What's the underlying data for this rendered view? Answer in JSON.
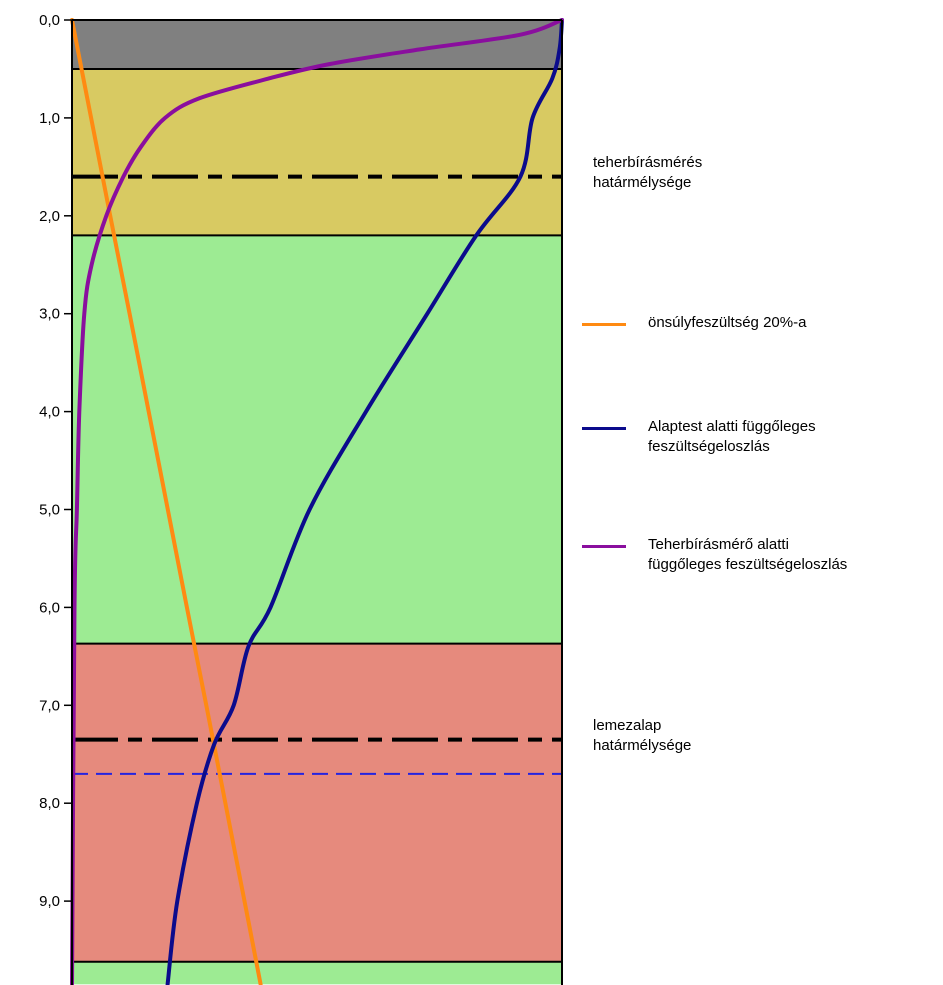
{
  "chart_data": {
    "type": "line",
    "title": "",
    "xlabel": "",
    "ylabel": "",
    "ylim": [
      0,
      9.85
    ],
    "y_inverted": true,
    "y_ticks": [
      "0,0",
      "1,0",
      "2,0",
      "3,0",
      "4,0",
      "5,0",
      "6,0",
      "7,0",
      "8,0",
      "9,0"
    ],
    "layers": [
      {
        "top": 0.0,
        "bottom": 0.5,
        "color": "#808080"
      },
      {
        "top": 0.5,
        "bottom": 2.2,
        "color": "#d8ca62"
      },
      {
        "top": 2.2,
        "bottom": 6.37,
        "color": "#9deb93"
      },
      {
        "top": 6.37,
        "bottom": 9.62,
        "color": "#e68a7d"
      },
      {
        "top": 9.62,
        "bottom": 9.85,
        "color": "#9deb93"
      }
    ],
    "reference_lines": [
      {
        "depth": 1.6,
        "style": "dash-dot",
        "color": "#000000",
        "label_lines": [
          "teherbírásmérés",
          "határmélysége"
        ]
      },
      {
        "depth": 7.35,
        "style": "dash-dot",
        "color": "#000000",
        "label_lines": [
          "lemezalap",
          "határmélysége"
        ]
      },
      {
        "depth": 7.7,
        "style": "dashed",
        "color": "#2424e0"
      }
    ],
    "series": [
      {
        "name": "önsúlyfeszültség 20%-a",
        "color": "#ff8a12",
        "points": [
          [
            0.0,
            0.0
          ],
          [
            1.0,
            0.078
          ],
          [
            2.0,
            0.156
          ],
          [
            3.0,
            0.235
          ],
          [
            4.0,
            0.313
          ],
          [
            5.0,
            0.391
          ],
          [
            6.0,
            0.469
          ],
          [
            7.0,
            0.548
          ],
          [
            8.0,
            0.626
          ],
          [
            9.0,
            0.704
          ],
          [
            9.85,
            0.77
          ]
        ]
      },
      {
        "name": "Alaptest alatti függőleges feszültségeloszlás",
        "color": "#0b0b8c",
        "points": [
          [
            0.0,
            2.0
          ],
          [
            0.3,
            1.99
          ],
          [
            0.6,
            1.96
          ],
          [
            1.0,
            1.88
          ],
          [
            1.6,
            1.83
          ],
          [
            2.2,
            1.65
          ],
          [
            3.0,
            1.45
          ],
          [
            4.0,
            1.2
          ],
          [
            5.0,
            0.97
          ],
          [
            6.0,
            0.81
          ],
          [
            6.4,
            0.72
          ],
          [
            7.0,
            0.66
          ],
          [
            7.4,
            0.58
          ],
          [
            8.0,
            0.51
          ],
          [
            9.0,
            0.43
          ],
          [
            9.85,
            0.39
          ]
        ]
      },
      {
        "name": "Teherbírásmérő alatti függőleges feszültségeloszlás",
        "color": "#8a0e9e",
        "points": [
          [
            0.0,
            2.0
          ],
          [
            0.15,
            1.83
          ],
          [
            0.3,
            1.42
          ],
          [
            0.45,
            1.05
          ],
          [
            0.6,
            0.8
          ],
          [
            0.8,
            0.52
          ],
          [
            1.0,
            0.38
          ],
          [
            1.3,
            0.28
          ],
          [
            1.6,
            0.21
          ],
          [
            2.0,
            0.14
          ],
          [
            2.5,
            0.08
          ],
          [
            3.0,
            0.05
          ],
          [
            4.0,
            0.03
          ],
          [
            5.0,
            0.02
          ],
          [
            6.0,
            0.01
          ],
          [
            9.85,
            0.0
          ]
        ]
      }
    ],
    "legend": [
      {
        "label_lines": [
          "önsúlyfeszültség 20%-a"
        ],
        "color": "#ff8a12"
      },
      {
        "label_lines": [
          "Alaptest alatti függőleges",
          "feszültségeloszlás"
        ],
        "color": "#0b0b8c"
      },
      {
        "label_lines": [
          "Teherbírásmérő alatti",
          "függőleges feszültségeloszlás"
        ],
        "color": "#8a0e9e"
      }
    ],
    "legend_position": "right",
    "grid": false
  }
}
